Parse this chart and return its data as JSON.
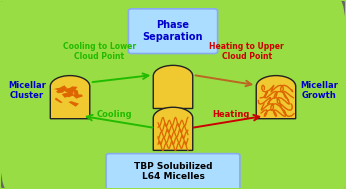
{
  "bg_color": "#99dd44",
  "phase_sep_box_color": "#aaddff",
  "tbp_box_color": "#aaddff",
  "micelle_fill": "#f0c830",
  "stroke_color": "#222222",
  "pattern_color": "#dd6600",
  "phase_sep_text": "Phase\nSeparation",
  "tbp_text": "TBP Solubilized\nL64 Micelles",
  "micellar_cluster_text": "Micellar\nCluster",
  "micellar_growth_text": "Micellar\nGrowth",
  "cooling_lower_text": "Cooling to Lower\nCloud Point",
  "heating_upper_text": "Heating to Upper\nCloud Point",
  "cooling_text": "Cooling",
  "heating_text": "Heating",
  "green_color": "#22bb00",
  "red_color": "#cc0000",
  "blue_color": "#0000cc",
  "arrow_green": "#22bb00",
  "arrow_brown": "#bb6622",
  "figw": 3.46,
  "figh": 1.89,
  "dpi": 100
}
